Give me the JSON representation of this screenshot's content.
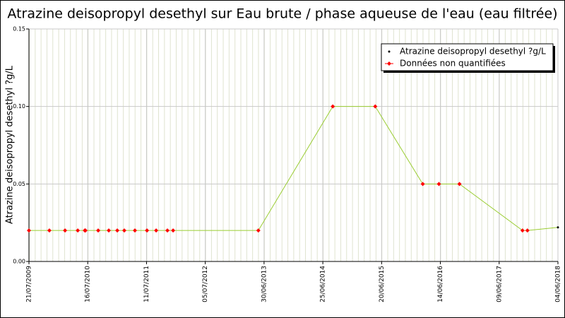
{
  "chart_data": {
    "type": "line",
    "title": "Atrazine deisopropyl desethyl sur Eau brute / phase aqueuse de l'eau (eau filtrée)",
    "y_label": "Atrazine deisopropyl desethyl ?g/L",
    "x": [
      "21/07/2009",
      "23/11/2009",
      "27/02/2010",
      "16/05/2010",
      "28/06/2010",
      "02/07/2010",
      "18/09/2010",
      "22/11/2010",
      "13/01/2011",
      "25/02/2011",
      "01/05/2011",
      "14/07/2011",
      "08/09/2011",
      "16/11/2011",
      "21/12/2011",
      "26/05/2013",
      "25/08/2014",
      "12/05/2015",
      "27/02/2016",
      "05/06/2016",
      "09/10/2016",
      "30/10/2017",
      "29/11/2017",
      "04/06/2018"
    ],
    "series": [
      {
        "name": "Atrazine deisopropyl desethyl ?g/L",
        "color": "#9acd32",
        "marker_color": "#000000",
        "values": [
          0.02,
          0.02,
          0.02,
          0.02,
          0.02,
          0.02,
          0.02,
          0.02,
          0.02,
          0.02,
          0.02,
          0.02,
          0.02,
          0.02,
          0.02,
          0.02,
          0.1,
          0.1,
          0.05,
          0.05,
          0.05,
          0.02,
          0.02,
          0.022
        ]
      },
      {
        "name": "Données non quantifiées",
        "color": "#ff0000",
        "values": [
          0.02,
          0.02,
          0.02,
          0.02,
          0.02,
          0.02,
          0.02,
          0.02,
          0.02,
          0.02,
          0.02,
          0.02,
          0.02,
          0.02,
          0.02,
          0.02,
          0.1,
          0.1,
          0.05,
          0.05,
          0.05,
          0.02,
          0.02,
          null
        ]
      }
    ],
    "xlim": [
      "21/07/2009",
      "04/06/2018"
    ],
    "xticks": [
      "21/07/2009",
      "16/07/2010",
      "11/07/2011",
      "05/07/2012",
      "30/06/2013",
      "25/06/2014",
      "20/06/2015",
      "14/06/2016",
      "09/06/2017",
      "04/06/2018"
    ],
    "ylim": [
      0,
      0.15
    ],
    "yticks": [
      {
        "value": 0,
        "label": "0.00"
      },
      {
        "value": 0.05,
        "label": "0.05"
      },
      {
        "value": 0.1,
        "label": "0.10"
      },
      {
        "value": 0.15,
        "label": "0.15"
      }
    ],
    "grid": true,
    "legend": "top-right"
  }
}
